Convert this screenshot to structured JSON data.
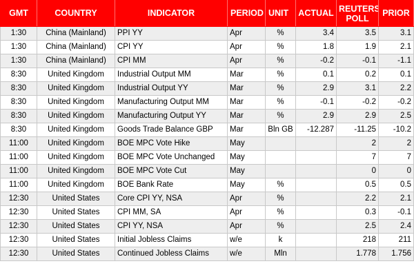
{
  "headers": {
    "gmt": "GMT",
    "country": "COUNTRY",
    "indicator": "INDICATOR",
    "period": "PERIOD",
    "unit": "UNIT",
    "actual": "ACTUAL",
    "poll_line1": "REUTERS",
    "poll_line2": "POLL",
    "prior": "PRIOR"
  },
  "rows": [
    {
      "gmt": "1:30",
      "country": "China (Mainland)",
      "indicator": "PPI YY",
      "period": "Apr",
      "unit": "%",
      "actual": "3.4",
      "poll": "3.5",
      "prior": "3.1"
    },
    {
      "gmt": "1:30",
      "country": "China (Mainland)",
      "indicator": "CPI YY",
      "period": "Apr",
      "unit": "%",
      "actual": "1.8",
      "poll": "1.9",
      "prior": "2.1"
    },
    {
      "gmt": "1:30",
      "country": "China (Mainland)",
      "indicator": "CPI MM",
      "period": "Apr",
      "unit": "%",
      "actual": "-0.2",
      "poll": "-0.1",
      "prior": "-1.1"
    },
    {
      "gmt": "8:30",
      "country": "United Kingdom",
      "indicator": "Industrial Output MM",
      "period": "Mar",
      "unit": "%",
      "actual": "0.1",
      "poll": "0.2",
      "prior": "0.1"
    },
    {
      "gmt": "8:30",
      "country": "United Kingdom",
      "indicator": "Industrial Output YY",
      "period": "Mar",
      "unit": "%",
      "actual": "2.9",
      "poll": "3.1",
      "prior": "2.2"
    },
    {
      "gmt": "8:30",
      "country": "United Kingdom",
      "indicator": "Manufacturing Output MM",
      "period": "Mar",
      "unit": "%",
      "actual": "-0.1",
      "poll": "-0.2",
      "prior": "-0.2"
    },
    {
      "gmt": "8:30",
      "country": "United Kingdom",
      "indicator": "Manufacturing Output YY",
      "period": "Mar",
      "unit": "%",
      "actual": "2.9",
      "poll": "2.9",
      "prior": "2.5"
    },
    {
      "gmt": "8:30",
      "country": "United Kingdom",
      "indicator": "Goods Trade Balance GBP",
      "period": "Mar",
      "unit": "Bln GB",
      "actual": "-12.287",
      "poll": "-11.25",
      "prior": "-10.2"
    },
    {
      "gmt": "11:00",
      "country": "United Kingdom",
      "indicator": "BOE MPC Vote Hike",
      "period": "May",
      "unit": "",
      "actual": "",
      "poll": "2",
      "prior": "2"
    },
    {
      "gmt": "11:00",
      "country": "United Kingdom",
      "indicator": "BOE MPC Vote Unchanged",
      "period": "May",
      "unit": "",
      "actual": "",
      "poll": "7",
      "prior": "7"
    },
    {
      "gmt": "11:00",
      "country": "United Kingdom",
      "indicator": "BOE MPC Vote Cut",
      "period": "May",
      "unit": "",
      "actual": "",
      "poll": "0",
      "prior": "0"
    },
    {
      "gmt": "11:00",
      "country": "United Kingdom",
      "indicator": "BOE Bank Rate",
      "period": "May",
      "unit": "%",
      "actual": "",
      "poll": "0.5",
      "prior": "0.5"
    },
    {
      "gmt": "12:30",
      "country": "United States",
      "indicator": "Core CPI YY, NSA",
      "period": "Apr",
      "unit": "%",
      "actual": "",
      "poll": "2.2",
      "prior": "2.1"
    },
    {
      "gmt": "12:30",
      "country": "United States",
      "indicator": "CPI MM, SA",
      "period": "Apr",
      "unit": "%",
      "actual": "",
      "poll": "0.3",
      "prior": "-0.1"
    },
    {
      "gmt": "12:30",
      "country": "United States",
      "indicator": "CPI YY, NSA",
      "period": "Apr",
      "unit": "%",
      "actual": "",
      "poll": "2.5",
      "prior": "2.4"
    },
    {
      "gmt": "12:30",
      "country": "United States",
      "indicator": "Initial Jobless Claims",
      "period": "w/e",
      "unit": "k",
      "actual": "",
      "poll": "218",
      "prior": "211"
    },
    {
      "gmt": "12:30",
      "country": "United States",
      "indicator": "Continued Jobless Claims",
      "period": "w/e",
      "unit": "Mln",
      "actual": "",
      "poll": "1.778",
      "prior": "1.756"
    }
  ]
}
